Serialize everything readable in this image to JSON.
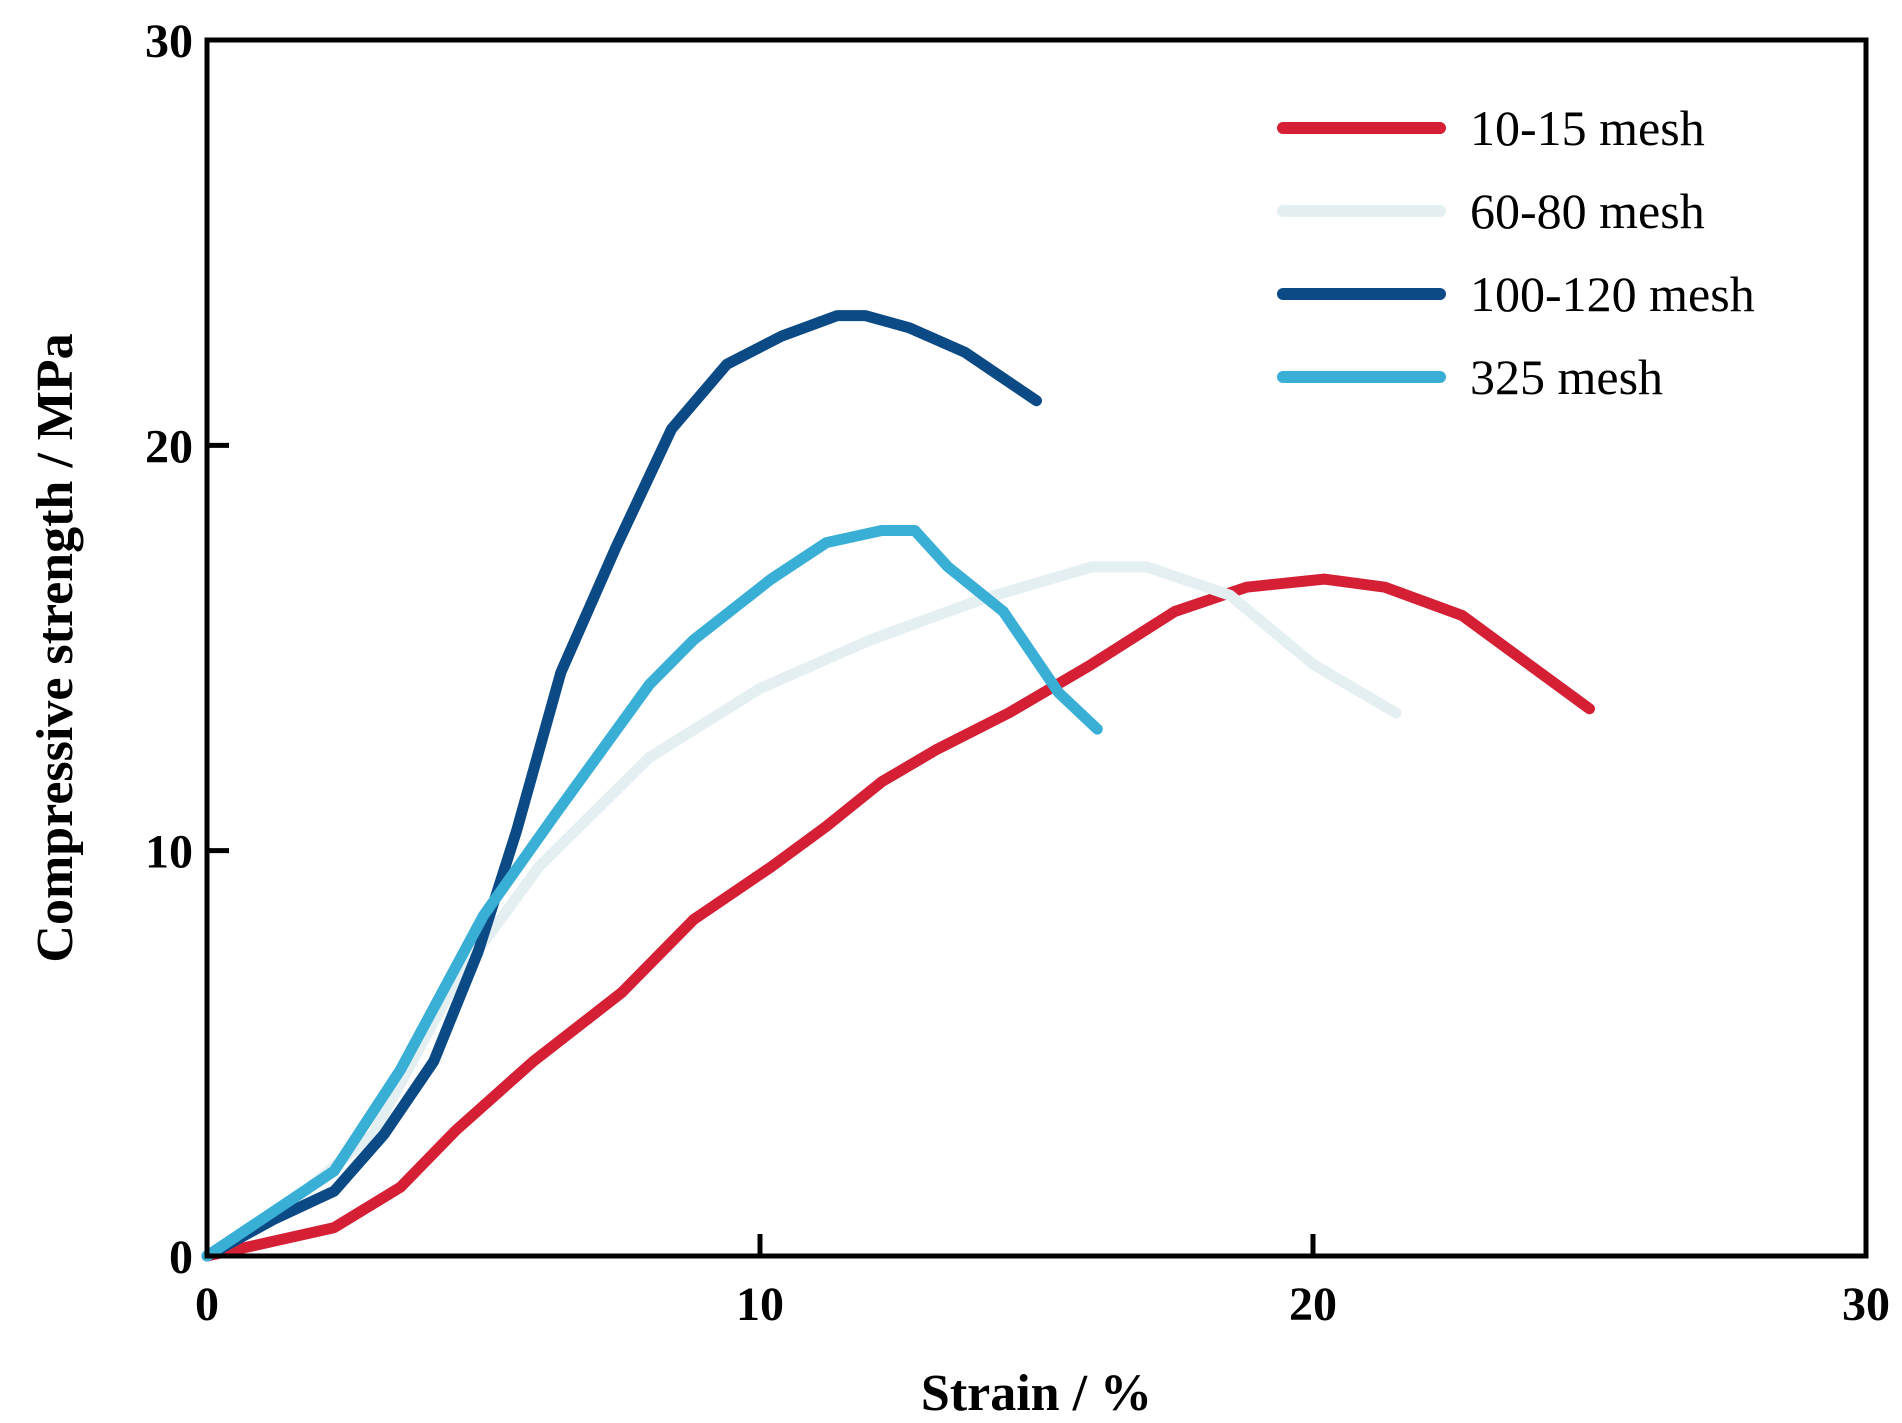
{
  "chart_data": {
    "type": "line",
    "title": "",
    "xlabel": "Strain / %",
    "ylabel": "Compressive strength / MPa",
    "xlim": [
      0,
      30
    ],
    "ylim": [
      0,
      30
    ],
    "xticks": [
      0,
      10,
      20,
      30
    ],
    "yticks": [
      0,
      10,
      20,
      30
    ],
    "grid": false,
    "legend_position": "top-right",
    "series": [
      {
        "name": "10-15 mesh",
        "color": "#d41f35",
        "x": [
          0,
          1,
          2.3,
          3.5,
          4.5,
          5.9,
          7.5,
          8.8,
          10.2,
          11.2,
          12.2,
          13.2,
          14.5,
          16,
          17.5,
          18.8,
          20.2,
          21.3,
          22.7,
          24,
          25
        ],
        "y": [
          0,
          0.3,
          0.7,
          1.7,
          3.1,
          4.8,
          6.5,
          8.3,
          9.6,
          10.6,
          11.7,
          12.5,
          13.4,
          14.6,
          15.9,
          16.5,
          16.7,
          16.5,
          15.8,
          14.5,
          13.5
        ]
      },
      {
        "name": "60-80 mesh",
        "color": "#e4eff2",
        "x": [
          0,
          1.5,
          3,
          4.5,
          6,
          8,
          10,
          12,
          14,
          16,
          17,
          18.5,
          20,
          21.5
        ],
        "y": [
          0,
          1.3,
          3,
          6.8,
          9.6,
          12.3,
          14,
          15.2,
          16.2,
          17,
          17,
          16.3,
          14.6,
          13.4
        ]
      },
      {
        "name": "100-120 mesh",
        "color": "#0b4a85",
        "x": [
          0,
          1.2,
          2.3,
          3.2,
          4.1,
          4.9,
          5.6,
          6.4,
          7.4,
          8.4,
          9.4,
          10.4,
          11.4,
          11.9,
          12.7,
          13.7,
          15
        ],
        "y": [
          0,
          0.9,
          1.6,
          3,
          4.8,
          7.5,
          10.5,
          14.4,
          17.5,
          20.4,
          22,
          22.7,
          23.2,
          23.2,
          22.9,
          22.3,
          21.1
        ]
      },
      {
        "name": "325 mesh",
        "color": "#3aafd6",
        "x": [
          0,
          2.3,
          3.5,
          5,
          6.3,
          8,
          8.8,
          10.2,
          11.2,
          12.2,
          12.8,
          13.4,
          14.4,
          15.4,
          16.1
        ],
        "y": [
          0,
          2.1,
          4.6,
          8.4,
          10.9,
          14.1,
          15.2,
          16.7,
          17.6,
          17.9,
          17.9,
          17,
          15.9,
          13.9,
          13
        ]
      }
    ]
  }
}
